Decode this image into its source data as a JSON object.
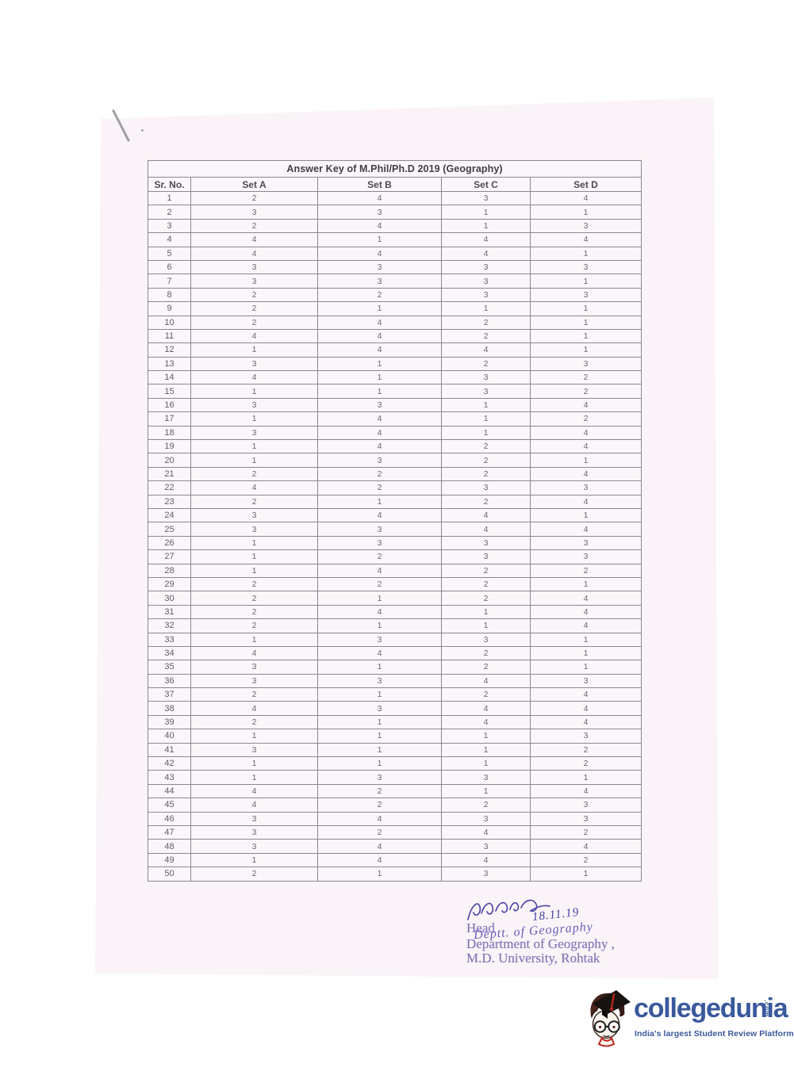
{
  "table": {
    "title": "Answer Key of M.Phil/Ph.D 2019 (Geography)",
    "columns": [
      "Sr. No.",
      "Set A",
      "Set B",
      "Set C",
      "Set D"
    ],
    "rows": [
      [
        1,
        2,
        4,
        3,
        4
      ],
      [
        2,
        3,
        3,
        1,
        1
      ],
      [
        3,
        2,
        4,
        1,
        3
      ],
      [
        4,
        4,
        1,
        4,
        4
      ],
      [
        5,
        4,
        4,
        4,
        1
      ],
      [
        6,
        3,
        3,
        3,
        3
      ],
      [
        7,
        3,
        3,
        3,
        1
      ],
      [
        8,
        2,
        2,
        3,
        3
      ],
      [
        9,
        2,
        1,
        1,
        1
      ],
      [
        10,
        2,
        4,
        2,
        1
      ],
      [
        11,
        4,
        4,
        2,
        1
      ],
      [
        12,
        1,
        4,
        4,
        1
      ],
      [
        13,
        3,
        1,
        2,
        3
      ],
      [
        14,
        4,
        1,
        3,
        2
      ],
      [
        15,
        1,
        1,
        3,
        2
      ],
      [
        16,
        3,
        3,
        1,
        4
      ],
      [
        17,
        1,
        4,
        1,
        2
      ],
      [
        18,
        3,
        4,
        1,
        4
      ],
      [
        19,
        1,
        4,
        2,
        4
      ],
      [
        20,
        1,
        3,
        2,
        1
      ],
      [
        21,
        2,
        2,
        2,
        4
      ],
      [
        22,
        4,
        2,
        3,
        3
      ],
      [
        23,
        2,
        1,
        2,
        4
      ],
      [
        24,
        3,
        4,
        4,
        1
      ],
      [
        25,
        3,
        3,
        4,
        4
      ],
      [
        26,
        1,
        3,
        3,
        3
      ],
      [
        27,
        1,
        2,
        3,
        3
      ],
      [
        28,
        1,
        4,
        2,
        2
      ],
      [
        29,
        2,
        2,
        2,
        1
      ],
      [
        30,
        2,
        1,
        2,
        4
      ],
      [
        31,
        2,
        4,
        1,
        4
      ],
      [
        32,
        2,
        1,
        1,
        4
      ],
      [
        33,
        1,
        3,
        3,
        1
      ],
      [
        34,
        4,
        4,
        2,
        1
      ],
      [
        35,
        3,
        1,
        2,
        1
      ],
      [
        36,
        3,
        3,
        4,
        3
      ],
      [
        37,
        2,
        1,
        2,
        4
      ],
      [
        38,
        4,
        3,
        4,
        4
      ],
      [
        39,
        2,
        1,
        4,
        4
      ],
      [
        40,
        1,
        1,
        1,
        3
      ],
      [
        41,
        3,
        1,
        1,
        2
      ],
      [
        42,
        1,
        1,
        1,
        2
      ],
      [
        43,
        1,
        3,
        3,
        1
      ],
      [
        44,
        4,
        2,
        1,
        4
      ],
      [
        45,
        4,
        2,
        2,
        3
      ],
      [
        46,
        3,
        4,
        3,
        3
      ],
      [
        47,
        3,
        2,
        4,
        2
      ],
      [
        48,
        3,
        4,
        3,
        4
      ],
      [
        49,
        1,
        4,
        4,
        2
      ],
      [
        50,
        2,
        1,
        3,
        1
      ]
    ]
  },
  "signature": {
    "date": "18.11.19",
    "handwritten_note": "Deptt. of Geography",
    "stamp_lines": {
      "head": "Head",
      "department": "Department of Geography ,",
      "university": "M.D. University, Rohtak"
    },
    "ink_color": "#4f48a8",
    "stamp_color": "#8070b6"
  },
  "footer_logo": {
    "brand": "collegedunia",
    "domain": ".com",
    "tagline": "India's largest Student Review Platform",
    "brand_color": "#3a589c",
    "mascot_red": "#b5281e"
  }
}
